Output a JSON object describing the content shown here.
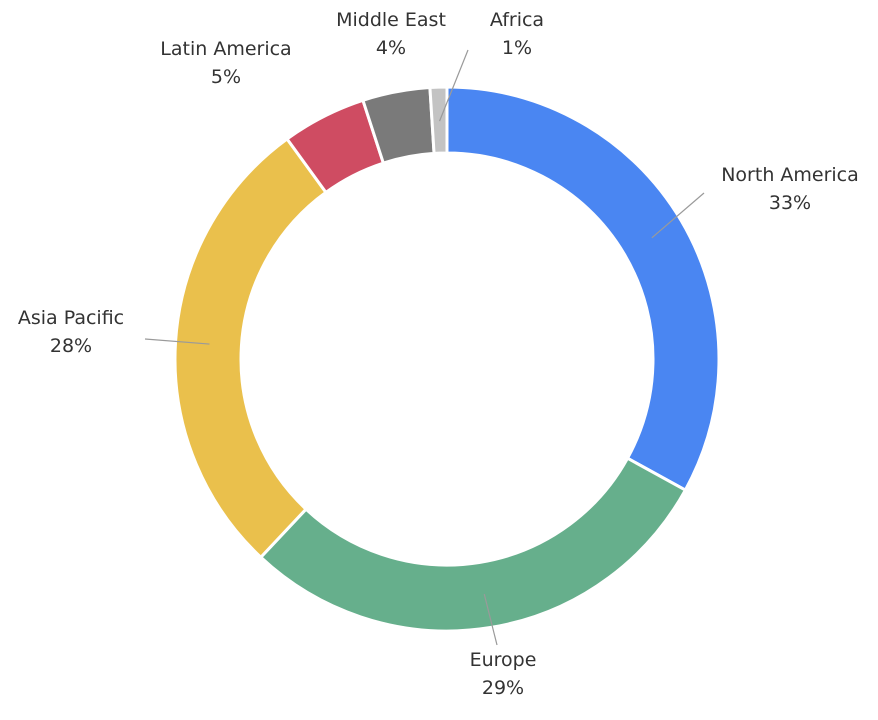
{
  "chart_data": {
    "type": "pie",
    "donut": true,
    "title": "",
    "legend": "none",
    "slices": [
      {
        "name": "North America",
        "value": 33,
        "value_label": "33%",
        "color": "#4A86F2"
      },
      {
        "name": "Europe",
        "value": 29,
        "value_label": "29%",
        "color": "#66AF8C"
      },
      {
        "name": "Asia Pacific",
        "value": 28,
        "value_label": "28%",
        "color": "#EAC04C"
      },
      {
        "name": "Latin America",
        "value": 5,
        "value_label": "5%",
        "color": "#CF4C62"
      },
      {
        "name": "Middle East",
        "value": 4,
        "value_label": "4%",
        "color": "#7A7A7A"
      },
      {
        "name": "Africa",
        "value": 1,
        "value_label": "1%",
        "color": "#C3C3C3"
      }
    ]
  }
}
